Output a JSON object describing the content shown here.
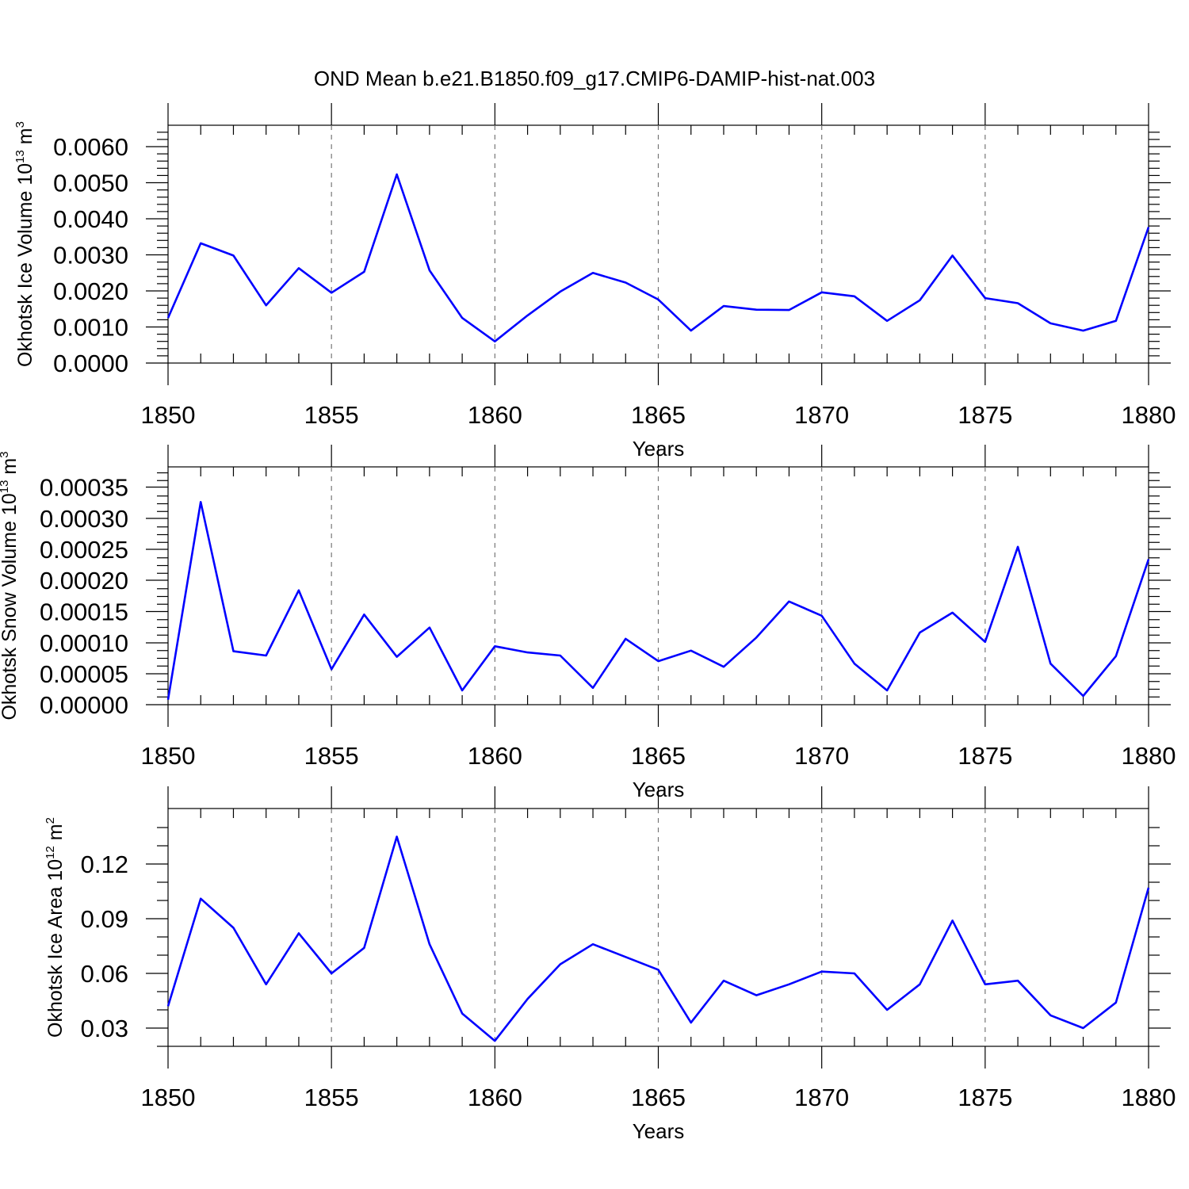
{
  "title": "OND Mean b.e21.B1850.f09_g17.CMIP6-DAMIP-hist-nat.003",
  "colors": {
    "line": "#0000ff",
    "grid": "#777777",
    "axis": "#000000"
  },
  "chart_data": [
    {
      "type": "line",
      "ylabel": {
        "text": "Okhotsk Ice Volume 10",
        "exp": "13",
        "unit": " m",
        "unit_exp": "3"
      },
      "xlabel": "Years",
      "xlim": [
        1850,
        1880
      ],
      "ylim": [
        0,
        0.0062
      ],
      "x_ticks": [
        1850,
        1855,
        1860,
        1865,
        1870,
        1875,
        1880
      ],
      "y_ticks": [
        "0.0000",
        "0.0010",
        "0.0020",
        "0.0030",
        "0.0040",
        "0.0050",
        "0.0060"
      ],
      "grid": "vertical dashed at major x ticks",
      "series": [
        {
          "x": [
            1850,
            1851,
            1852,
            1853,
            1854,
            1855,
            1856,
            1857,
            1858,
            1859,
            1860,
            1861,
            1862,
            1863,
            1864,
            1865,
            1866,
            1867,
            1868,
            1869,
            1870,
            1871,
            1872,
            1873,
            1874,
            1875,
            1876,
            1877,
            1878,
            1879,
            1880
          ],
          "values": [
            0.00125,
            0.00332,
            0.00298,
            0.0016,
            0.00263,
            0.00195,
            0.00253,
            0.00523,
            0.00257,
            0.00125,
            0.0006,
            0.00132,
            0.00198,
            0.0025,
            0.00223,
            0.00176,
            0.0009,
            0.00158,
            0.00148,
            0.00147,
            0.00196,
            0.00185,
            0.00117,
            0.00174,
            0.00298,
            0.0018,
            0.00166,
            0.0011,
            0.0009,
            0.00117,
            0.00377
          ]
        }
      ]
    },
    {
      "type": "line",
      "ylabel": {
        "text": "Okhotsk Snow Volume 10",
        "exp": "13",
        "unit": " m",
        "unit_exp": "3"
      },
      "xlabel": "Years",
      "xlim": [
        1850,
        1880
      ],
      "ylim": [
        0,
        0.00038
      ],
      "x_ticks": [
        1850,
        1855,
        1860,
        1865,
        1870,
        1875,
        1880
      ],
      "y_ticks": [
        "0.00000",
        "0.00005",
        "0.00010",
        "0.00015",
        "0.00020",
        "0.00025",
        "0.00030",
        "0.00035"
      ],
      "grid": "vertical dashed at major x ticks",
      "series": [
        {
          "x": [
            1850,
            1851,
            1852,
            1853,
            1854,
            1855,
            1856,
            1857,
            1858,
            1859,
            1860,
            1861,
            1862,
            1863,
            1864,
            1865,
            1866,
            1867,
            1868,
            1869,
            1870,
            1871,
            1872,
            1873,
            1874,
            1875,
            1876,
            1877,
            1878,
            1879,
            1880
          ],
          "values": [
            8e-06,
            0.000326,
            8.6e-05,
            7.9e-05,
            0.000184,
            5.7e-05,
            0.000145,
            7.7e-05,
            0.000124,
            2.3e-05,
            9.4e-05,
            8.4e-05,
            7.9e-05,
            2.7e-05,
            0.000106,
            7e-05,
            8.7e-05,
            6.1e-05,
            0.000108,
            0.000166,
            0.000143,
            6.6e-05,
            2.3e-05,
            0.000116,
            0.000148,
            0.000101,
            0.000254,
            6.6e-05,
            1.4e-05,
            7.8e-05,
            0.000234
          ]
        }
      ]
    },
    {
      "type": "line",
      "ylabel": {
        "text": "Okhotsk Ice Area 10",
        "exp": "12",
        "unit": " m",
        "unit_exp": "2"
      },
      "xlabel": "Years",
      "xlim": [
        1850,
        1880
      ],
      "ylim": [
        0.02,
        0.14
      ],
      "x_ticks": [
        1850,
        1855,
        1860,
        1865,
        1870,
        1875,
        1880
      ],
      "y_ticks": [
        "0.03",
        "0.06",
        "0.09",
        "0.12"
      ],
      "grid": "vertical dashed at major x ticks",
      "series": [
        {
          "x": [
            1850,
            1851,
            1852,
            1853,
            1854,
            1855,
            1856,
            1857,
            1858,
            1859,
            1860,
            1861,
            1862,
            1863,
            1864,
            1865,
            1866,
            1867,
            1868,
            1869,
            1870,
            1871,
            1872,
            1873,
            1874,
            1875,
            1876,
            1877,
            1878,
            1879,
            1880
          ],
          "values": [
            0.042,
            0.101,
            0.085,
            0.054,
            0.082,
            0.06,
            0.074,
            0.135,
            0.076,
            0.038,
            0.023,
            0.046,
            0.065,
            0.076,
            0.069,
            0.062,
            0.033,
            0.056,
            0.048,
            0.054,
            0.061,
            0.06,
            0.04,
            0.054,
            0.089,
            0.054,
            0.056,
            0.037,
            0.03,
            0.044,
            0.107
          ]
        }
      ]
    }
  ]
}
